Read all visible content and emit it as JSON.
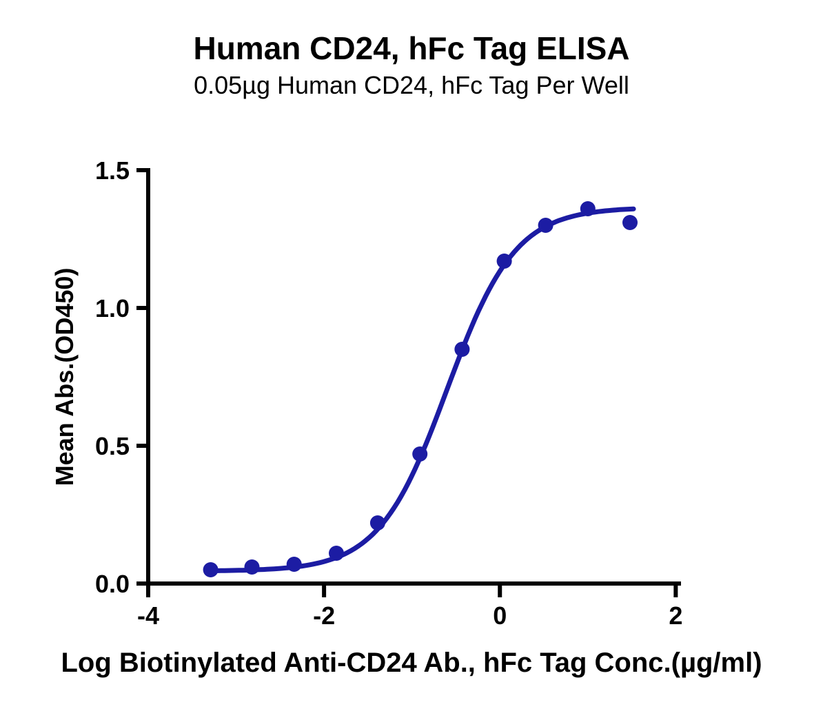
{
  "chart_data": {
    "type": "scatter",
    "title": "Human CD24, hFc Tag ELISA",
    "subtitle": "0.05µg Human CD24, hFc Tag Per Well",
    "xlabel": "Log Biotinylated Anti-CD24 Ab., hFc Tag Conc.(µg/ml)",
    "ylabel": "Mean Abs.(OD450)",
    "xlim": [
      -4,
      2.06
    ],
    "ylim": [
      0,
      1.5
    ],
    "xticks": [
      -4,
      -2,
      0,
      2
    ],
    "xtick_labels": [
      "-4",
      "-2",
      "0",
      "2"
    ],
    "yticks": [
      0,
      0.5,
      1,
      1.5
    ],
    "ytick_labels": [
      "0.0",
      "0.5",
      "1.0",
      "1.5"
    ],
    "grid": false,
    "legend": null,
    "background": "#ffffff",
    "axis_color": "#000000",
    "series": [
      {
        "marker": "circle",
        "color": "#1c1ca3",
        "x": [
          -3.29,
          -2.82,
          -2.34,
          -1.86,
          -1.39,
          -0.91,
          -0.43,
          0.05,
          0.52,
          1.0,
          1.48
        ],
        "y": [
          0.05,
          0.06,
          0.07,
          0.11,
          0.22,
          0.47,
          0.85,
          1.17,
          1.3,
          1.36,
          1.31
        ]
      }
    ],
    "fit_curve": {
      "model": "4PL",
      "bottom": 0.045,
      "top": 1.365,
      "logEC50": -0.6,
      "hillslope": 1.12,
      "x_start": -3.29,
      "x_end": 1.52
    }
  }
}
